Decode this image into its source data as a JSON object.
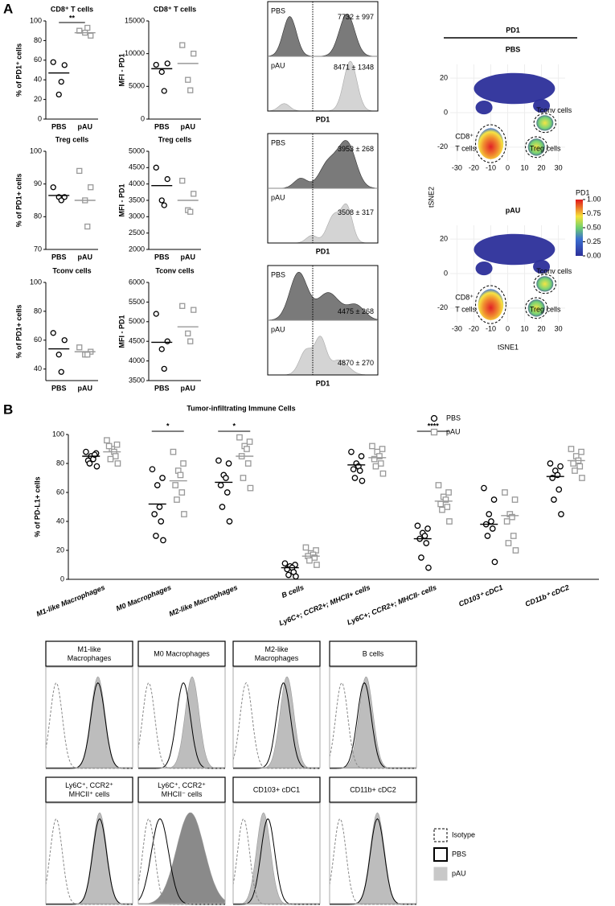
{
  "panel_labels": [
    "A",
    "B"
  ],
  "chart_data": [
    {
      "type": "dot",
      "title": "CD8⁺ T cells",
      "ylabel": "% of PD1⁺ cells",
      "categories": [
        "PBS",
        "pAU"
      ],
      "points": [
        [
          58,
          55,
          25,
          38
        ],
        [
          90,
          85,
          88,
          93
        ]
      ],
      "means": [
        47,
        88
      ],
      "colors": [
        "#000000",
        "#999999"
      ],
      "markers": [
        "circle",
        "square"
      ],
      "ylim": [
        0,
        100
      ],
      "yticks": [
        0,
        20,
        40,
        60,
        80,
        100
      ],
      "significance": "**"
    },
    {
      "type": "dot",
      "title": "CD8⁺ T cells",
      "ylabel": "MFI - PD1",
      "categories": [
        "PBS",
        "pAU"
      ],
      "points": [
        [
          8300,
          8500,
          7200,
          4300
        ],
        [
          11300,
          10000,
          6000,
          4400
        ]
      ],
      "means": [
        7700,
        8500
      ],
      "colors": [
        "#000000",
        "#999999"
      ],
      "markers": [
        "circle",
        "square"
      ],
      "ylim": [
        0,
        15000
      ],
      "yticks": [
        0,
        5000,
        10000,
        15000
      ]
    },
    {
      "type": "dot",
      "title": "Treg cells",
      "ylabel": "% of PD1+ cells",
      "categories": [
        "PBS",
        "pAU"
      ],
      "points": [
        [
          89,
          86,
          86,
          85
        ],
        [
          94,
          89,
          85,
          77
        ]
      ],
      "means": [
        86.5,
        85
      ],
      "colors": [
        "#000000",
        "#999999"
      ],
      "markers": [
        "circle",
        "square"
      ],
      "ylim": [
        70,
        100
      ],
      "yticks": [
        70,
        80,
        90,
        100
      ]
    },
    {
      "type": "dot",
      "title": "Treg cells",
      "ylabel": "MFI - PD1",
      "categories": [
        "PBS",
        "pAU"
      ],
      "points": [
        [
          4500,
          4150,
          3500,
          3350
        ],
        [
          4100,
          3700,
          3200,
          3150
        ]
      ],
      "means": [
        3950,
        3500
      ],
      "colors": [
        "#000000",
        "#999999"
      ],
      "markers": [
        "circle",
        "square"
      ],
      "ylim": [
        2000,
        5000
      ],
      "yticks": [
        2000,
        2500,
        3000,
        3500,
        4000,
        4500,
        5000
      ]
    },
    {
      "type": "dot",
      "title": "Tconv cells",
      "ylabel": "% of PD1+ cells",
      "categories": [
        "PBS",
        "pAU"
      ],
      "points": [
        [
          65,
          60,
          50,
          38
        ],
        [
          55,
          52,
          50,
          50
        ]
      ],
      "means": [
        54,
        52
      ],
      "colors": [
        "#000000",
        "#999999"
      ],
      "markers": [
        "circle",
        "square"
      ],
      "ylim": [
        32,
        100
      ],
      "yticks": [
        40,
        60,
        80,
        100
      ]
    },
    {
      "type": "dot",
      "title": "Tconv cells",
      "ylabel": "MFI - PD1",
      "categories": [
        "PBS",
        "pAU"
      ],
      "points": [
        [
          5200,
          4500,
          4300,
          3800
        ],
        [
          5400,
          5300,
          4700,
          4500
        ]
      ],
      "means": [
        4475,
        4870
      ],
      "colors": [
        "#000000",
        "#999999"
      ],
      "markers": [
        "circle",
        "square"
      ],
      "ylim": [
        3500,
        6000
      ],
      "yticks": [
        3500,
        4000,
        4500,
        5000,
        5500,
        6000
      ]
    },
    {
      "type": "grouped_dot",
      "title": "Tumor-infiltrating Immune Cells",
      "ylabel": "% of PD-L1+ cells",
      "categories": [
        "M1-like Macrophages",
        "M0 Macrophages",
        "M2-like Macrophages",
        "B cells",
        "Ly6C+; CCR2+; MHCII+ cells",
        "Ly6C+; CCR2+; MHCII- cells",
        "CD103⁺ cDC1",
        "CD11b⁺ cDC2"
      ],
      "series": [
        {
          "name": "PBS",
          "color": "#000000",
          "marker": "circle",
          "values": [
            [
              88,
              87,
              85,
              83,
              82,
              86,
              80,
              78
            ],
            [
              76,
              70,
              65,
              50,
              45,
              40,
              30,
              27
            ],
            [
              82,
              80,
              72,
              70,
              65,
              60,
              50,
              40
            ],
            [
              11,
              10,
              9,
              8,
              7,
              5,
              3,
              2
            ],
            [
              88,
              85,
              80,
              78,
              76,
              75,
              70,
              68
            ],
            [
              37,
              35,
              32,
              30,
              28,
              25,
              15,
              8
            ],
            [
              63,
              55,
              45,
              40,
              38,
              35,
              30,
              12
            ],
            [
              80,
              78,
              75,
              72,
              70,
              62,
              55,
              45
            ]
          ],
          "means": [
            85,
            52,
            67,
            8,
            79,
            28,
            38,
            71
          ]
        },
        {
          "name": "pAU",
          "color": "#999999",
          "marker": "square",
          "values": [
            [
              96,
              93,
              90,
              88,
              92,
              85,
              83,
              80
            ],
            [
              88,
              80,
              75,
              72,
              65,
              60,
              55,
              45
            ],
            [
              98,
              95,
              92,
              90,
              85,
              80,
              70,
              63
            ],
            [
              22,
              20,
              18,
              17,
              16,
              15,
              13,
              10
            ],
            [
              92,
              90,
              88,
              85,
              83,
              80,
              78,
              73
            ],
            [
              65,
              60,
              57,
              55,
              52,
              50,
              48,
              40
            ],
            [
              60,
              55,
              45,
              43,
              40,
              30,
              25,
              20
            ],
            [
              90,
              88,
              85,
              82,
              80,
              78,
              75,
              70
            ]
          ],
          "means": [
            88,
            68,
            85,
            16,
            84,
            54,
            44,
            82
          ]
        }
      ],
      "significance": [
        null,
        "*",
        "*",
        null,
        null,
        "****",
        null,
        null
      ],
      "ylim": [
        0,
        100
      ],
      "yticks": [
        0,
        20,
        40,
        60,
        80,
        100
      ],
      "legend": "upper right"
    }
  ],
  "flow_a": [
    {
      "labels": [
        "PBS",
        "pAU"
      ],
      "stats": [
        "7732 ± 997",
        "8471 ± 1348"
      ],
      "xlabel": "PD1"
    },
    {
      "labels": [
        "PBS",
        "pAU"
      ],
      "stats": [
        "3953 ± 268",
        "3508 ± 317"
      ],
      "xlabel": "PD1"
    },
    {
      "labels": [
        "PBS",
        "pAU"
      ],
      "stats": [
        "4475 ± 268",
        "4870 ± 270"
      ],
      "xlabel": "PD1"
    }
  ],
  "tsne": {
    "title": "PD1",
    "panels": [
      "PBS",
      "pAU"
    ],
    "xlabel": "tSNE1",
    "ylabel": "tSNE2",
    "xlim": [
      -34,
      34
    ],
    "ylim": [
      -28,
      28
    ],
    "xticks": [
      -30,
      -20,
      -10,
      0,
      10,
      20,
      30
    ],
    "yticks": [
      -20,
      0,
      20
    ],
    "clusters": [
      [
        "Tconv cells"
      ],
      [
        "CD8⁺",
        "T cells"
      ],
      [
        "Treg cells"
      ]
    ],
    "colorbar": {
      "title": "PD1",
      "lim": [
        0,
        1
      ],
      "ticks": [
        {
          "value": 0,
          "label": "0.00"
        },
        {
          "value": 0.25,
          "label": "0.25"
        },
        {
          "value": 0.5,
          "label": "0.50"
        },
        {
          "value": 0.75,
          "label": "0.75"
        },
        {
          "value": 1,
          "label": "1.00"
        }
      ]
    }
  },
  "flow_b": {
    "panels": [
      [
        "M1-like",
        "Macrophages"
      ],
      [
        "M0 Macrophages"
      ],
      [
        "M2-like",
        "Macrophages"
      ],
      [
        "B cells"
      ],
      [
        "Ly6C⁺, CCR2⁺",
        "MHCII⁺ cells"
      ],
      [
        "Ly6C⁺, CCR2⁺",
        "MHCII⁻ cells"
      ],
      [
        "CD103+ cDC1"
      ],
      [
        "CD11b+ cDC2"
      ]
    ],
    "legend": [
      "Isotype",
      "PBS",
      "pAU"
    ]
  }
}
